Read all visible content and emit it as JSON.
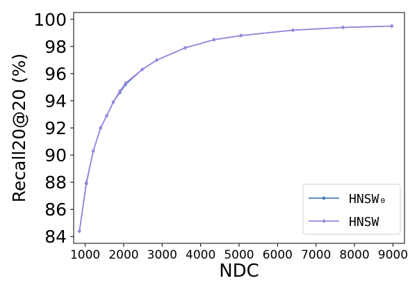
{
  "chart_data": {
    "type": "line",
    "xlabel": "NDC",
    "ylabel": "Recall20@20 (%)",
    "xlim": [
      700,
      9300
    ],
    "ylim": [
      83.5,
      100.5
    ],
    "x_ticks": [
      1000,
      2000,
      3000,
      4000,
      5000,
      6000,
      7000,
      8000,
      9000
    ],
    "y_ticks": [
      84,
      86,
      88,
      90,
      92,
      94,
      96,
      98,
      100
    ],
    "legend_position": "lower-right",
    "series": [
      {
        "name": "HNSW₀",
        "color": "#4a7fb5",
        "marker": "circle",
        "points": [
          {
            "x": 850,
            "y": 84.4
          },
          {
            "x": 1030,
            "y": 87.9
          },
          {
            "x": 1210,
            "y": 90.3
          },
          {
            "x": 1400,
            "y": 92.0
          },
          {
            "x": 1560,
            "y": 92.9
          },
          {
            "x": 1730,
            "y": 93.9
          },
          {
            "x": 1900,
            "y": 94.6
          },
          {
            "x": 2050,
            "y": 95.2
          },
          {
            "x": 2480,
            "y": 96.3
          },
          {
            "x": 2860,
            "y": 97.0
          },
          {
            "x": 3600,
            "y": 97.9
          },
          {
            "x": 4350,
            "y": 98.5
          },
          {
            "x": 5050,
            "y": 98.8
          },
          {
            "x": 6400,
            "y": 99.2
          },
          {
            "x": 7700,
            "y": 99.4
          },
          {
            "x": 8970,
            "y": 99.5
          }
        ]
      },
      {
        "name": "HNSW",
        "color": "#9b84e0",
        "marker": "diamond",
        "points": [
          {
            "x": 850,
            "y": 84.4
          },
          {
            "x": 1030,
            "y": 88.0
          },
          {
            "x": 1210,
            "y": 90.3
          },
          {
            "x": 1400,
            "y": 92.0
          },
          {
            "x": 1560,
            "y": 92.9
          },
          {
            "x": 1730,
            "y": 93.9
          },
          {
            "x": 1900,
            "y": 94.7
          },
          {
            "x": 2050,
            "y": 95.3
          },
          {
            "x": 2480,
            "y": 96.3
          },
          {
            "x": 2860,
            "y": 97.0
          },
          {
            "x": 3600,
            "y": 97.9
          },
          {
            "x": 4350,
            "y": 98.5
          },
          {
            "x": 5050,
            "y": 98.8
          },
          {
            "x": 6400,
            "y": 99.2
          },
          {
            "x": 7700,
            "y": 99.4
          },
          {
            "x": 8970,
            "y": 99.5
          }
        ]
      }
    ]
  }
}
